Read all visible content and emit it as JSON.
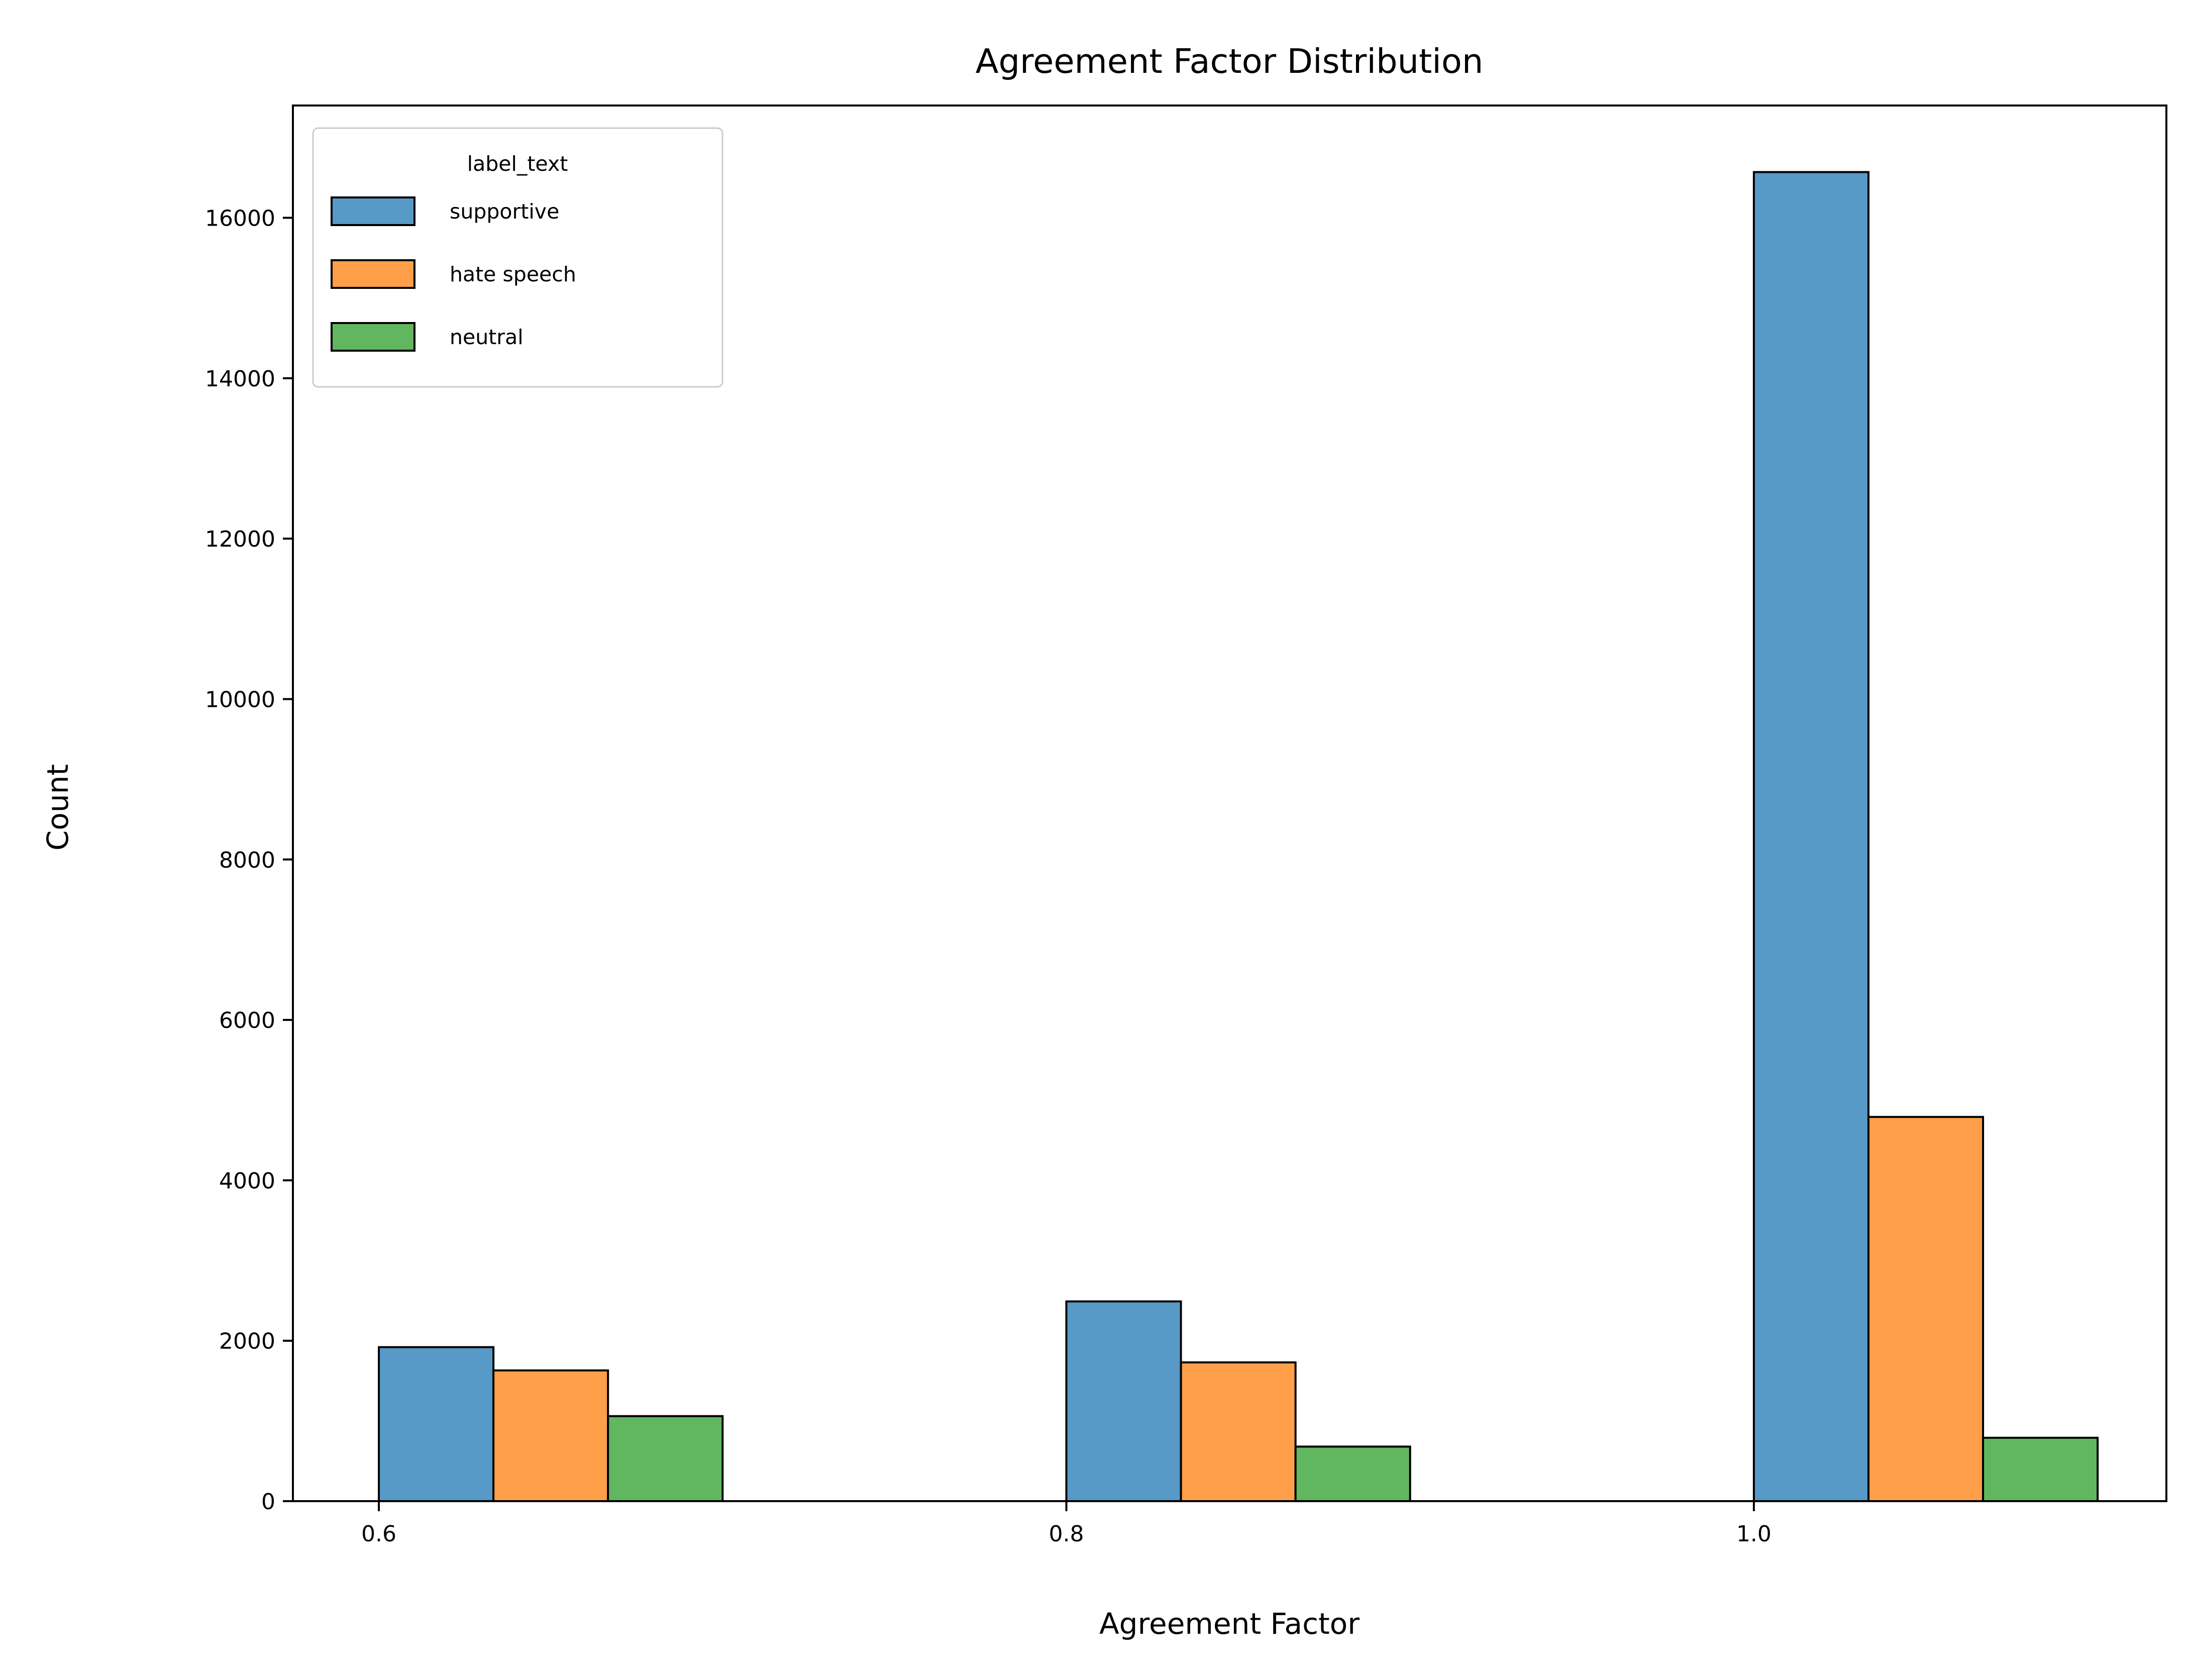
{
  "chart_data": {
    "type": "bar",
    "title": "Agreement Factor Distribution",
    "xlabel": "Agreement Factor",
    "ylabel": "Count",
    "categories": [
      0.6,
      0.8,
      1.0
    ],
    "x_tick_labels": [
      "0.6",
      "0.8",
      "1.0"
    ],
    "xlim": [
      0.575,
      1.12
    ],
    "ylim": [
      0,
      17400
    ],
    "y_ticks": [
      0,
      2000,
      4000,
      6000,
      8000,
      10000,
      12000,
      14000,
      16000
    ],
    "y_tick_labels": [
      "0",
      "2000",
      "4000",
      "6000",
      "8000",
      "10000",
      "12000",
      "14000",
      "16000"
    ],
    "bar_group_width": 0.1,
    "grid": false,
    "legend": {
      "title": "label_text",
      "placement": "top-left"
    },
    "series": [
      {
        "name": "supportive",
        "color": "#5799c7",
        "values": [
          1920,
          2490,
          16570
        ]
      },
      {
        "name": "hate speech",
        "color": "#ff9f4a",
        "values": [
          1630,
          1730,
          4790
        ]
      },
      {
        "name": "neutral",
        "color": "#61b75f",
        "values": [
          1060,
          680,
          790
        ]
      }
    ]
  }
}
